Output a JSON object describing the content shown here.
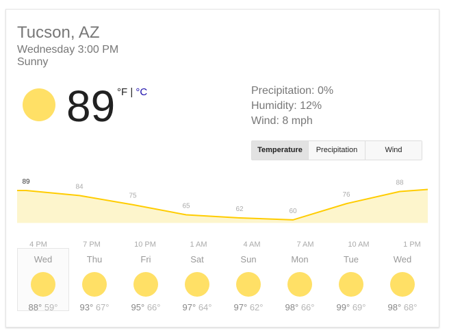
{
  "location": "Tucson, AZ",
  "datetime": "Wednesday 3:00 PM",
  "condition": "Sunny",
  "current_temp": "89",
  "unit_f": "°F",
  "unit_sep": " | ",
  "unit_c": "°C",
  "details": {
    "precipitation": "Precipitation: 0%",
    "humidity": "Humidity: 12%",
    "wind": "Wind: 8 mph"
  },
  "tabs": [
    "Temperature",
    "Precipitation",
    "Wind"
  ],
  "colors": {
    "sun": "#ffe066",
    "line": "#ffcc00",
    "fill": "#fdf5cc"
  },
  "chart_data": {
    "type": "area",
    "x": [
      "4 PM",
      "7 PM",
      "10 PM",
      "1 AM",
      "4 AM",
      "7 AM",
      "10 AM",
      "1 PM"
    ],
    "values": [
      89,
      84,
      75,
      65,
      62,
      60,
      76,
      88
    ]
  },
  "forecast": [
    {
      "day": "Wed",
      "high": "88°",
      "low": "59°",
      "icon": "sun-icon"
    },
    {
      "day": "Thu",
      "high": "93°",
      "low": "67°",
      "icon": "sun-icon"
    },
    {
      "day": "Fri",
      "high": "95°",
      "low": "66°",
      "icon": "sun-icon"
    },
    {
      "day": "Sat",
      "high": "97°",
      "low": "64°",
      "icon": "sun-icon"
    },
    {
      "day": "Sun",
      "high": "97°",
      "low": "62°",
      "icon": "sun-icon"
    },
    {
      "day": "Mon",
      "high": "98°",
      "low": "66°",
      "icon": "sun-icon"
    },
    {
      "day": "Tue",
      "high": "99°",
      "low": "69°",
      "icon": "sun-icon"
    },
    {
      "day": "Wed",
      "high": "98°",
      "low": "68°",
      "icon": "sun-icon"
    }
  ]
}
